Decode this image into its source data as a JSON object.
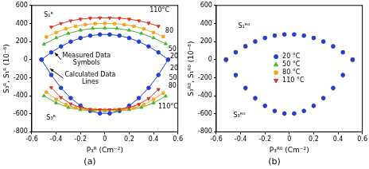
{
  "chart_data": [
    {
      "type": "scatter",
      "title": "(a)",
      "x_label": "P₃ᴿ (Cm⁻²)",
      "y_label": "S₃ᴿ, S₁ᴿ (10⁻⁶)",
      "xlim": [
        -0.6,
        0.6
      ],
      "xticks": [
        -0.6,
        -0.4,
        -0.2,
        0,
        0.2,
        0.4,
        0.6
      ],
      "ylim": [
        -800,
        600
      ],
      "yticks": [
        -800,
        -600,
        -400,
        -200,
        0,
        200,
        400,
        600
      ],
      "grid": false,
      "series": [
        {
          "color": "#e0321e",
          "marker": "triangle-down",
          "line_style": "solid",
          "x": [
            -0.44,
            -0.36,
            -0.28,
            -0.2,
            -0.12,
            -0.04,
            0.04,
            0.12,
            0.2,
            0.28,
            0.36,
            0.44
          ],
          "values": [
            360,
            400,
            430,
            448,
            458,
            462,
            462,
            458,
            448,
            430,
            405,
            370
          ]
        },
        {
          "color": "#f5a623",
          "marker": "square",
          "line_style": "solid",
          "x": [
            -0.48,
            -0.4,
            -0.32,
            -0.24,
            -0.16,
            -0.08,
            0,
            0.08,
            0.16,
            0.24,
            0.32,
            0.4,
            0.48
          ],
          "values": [
            250,
            300,
            340,
            370,
            388,
            398,
            400,
            398,
            388,
            370,
            340,
            300,
            255
          ]
        },
        {
          "color": "#4cb030",
          "marker": "triangle",
          "line_style": "solid",
          "x": [
            -0.5,
            -0.4,
            -0.3,
            -0.2,
            -0.1,
            0,
            0.1,
            0.2,
            0.3,
            0.4,
            0.5
          ],
          "values": [
            170,
            240,
            290,
            325,
            345,
            350,
            345,
            325,
            290,
            240,
            175
          ]
        },
        {
          "color": "#1f3fd6",
          "marker": "circle",
          "line_style": "solid",
          "x": [
            -0.52,
            -0.44,
            -0.36,
            -0.28,
            -0.2,
            -0.12,
            -0.04,
            0.04,
            0.12,
            0.2,
            0.28,
            0.36,
            0.44,
            0.52
          ],
          "values": [
            0,
            80,
            146,
            199,
            239,
            265,
            278,
            278,
            265,
            239,
            199,
            146,
            80,
            0
          ]
        },
        {
          "color": "#e0321e",
          "marker": "triangle-down",
          "line_style": "solid",
          "x": [
            -0.44,
            -0.36,
            -0.28,
            -0.2,
            -0.12,
            -0.04,
            0.04,
            0.12,
            0.2,
            0.28,
            0.36,
            0.44
          ],
          "values": [
            -310,
            -420,
            -490,
            -530,
            -550,
            -555,
            -555,
            -550,
            -530,
            -495,
            -430,
            -330
          ]
        },
        {
          "color": "#f5a623",
          "marker": "square",
          "line_style": "solid",
          "x": [
            -0.48,
            -0.4,
            -0.32,
            -0.24,
            -0.16,
            -0.08,
            0,
            0.08,
            0.16,
            0.24,
            0.32,
            0.4,
            0.48
          ],
          "values": [
            -360,
            -440,
            -500,
            -535,
            -550,
            -555,
            -555,
            -555,
            -550,
            -535,
            -500,
            -440,
            -370
          ]
        },
        {
          "color": "#4cb030",
          "marker": "triangle",
          "line_style": "solid",
          "x": [
            -0.5,
            -0.4,
            -0.3,
            -0.2,
            -0.1,
            0,
            0.1,
            0.2,
            0.3,
            0.4,
            0.5
          ],
          "values": [
            -400,
            -480,
            -530,
            -555,
            -565,
            -568,
            -565,
            -555,
            -530,
            -480,
            -405
          ]
        },
        {
          "color": "#1f3fd6",
          "marker": "circle",
          "line_style": "solid",
          "x": [
            -0.52,
            -0.44,
            -0.36,
            -0.28,
            -0.2,
            -0.12,
            -0.04,
            0.04,
            0.12,
            0.2,
            0.28,
            0.36,
            0.44,
            0.52
          ],
          "values": [
            0,
            -170,
            -313,
            -426,
            -511,
            -568,
            -596,
            -596,
            -568,
            -511,
            -426,
            -313,
            -170,
            0
          ]
        }
      ],
      "annotations": [
        "S₁ᴿ",
        "110°C",
        "80",
        "50",
        "20",
        "Measured Data Symbols",
        "Calculated Data Lines",
        "S₃ᴿ",
        "20",
        "50",
        "80",
        "110°C"
      ]
    },
    {
      "type": "scatter",
      "title": "(b)",
      "x_label": "P₃ᴿ⁰ (Cm⁻²)",
      "y_label": "S₃ᴿ⁰, S₁ᴿ⁰ (10⁻⁶)",
      "xlim": [
        -0.6,
        0.6
      ],
      "xticks": [
        -0.6,
        -0.4,
        -0.2,
        0,
        0.2,
        0.4,
        0.6
      ],
      "ylim": [
        -800,
        600
      ],
      "yticks": [
        -800,
        -600,
        -400,
        -200,
        0,
        200,
        400,
        600
      ],
      "grid": false,
      "legend": "center",
      "series": [
        {
          "name": "20 °C",
          "color": "#1f3fd6",
          "marker": "circle",
          "line_style": "none",
          "x": [
            -0.52,
            -0.44,
            -0.36,
            -0.28,
            -0.2,
            -0.12,
            -0.04,
            0.04,
            0.12,
            0.2,
            0.28,
            0.36,
            0.44,
            0.52
          ],
          "values": [
            0,
            80,
            146,
            199,
            239,
            265,
            278,
            278,
            265,
            239,
            199,
            146,
            80,
            0
          ]
        },
        {
          "name": "50 °C",
          "color": "#4cb030",
          "marker": "triangle",
          "line_style": "none",
          "x": [
            -0.52,
            -0.44,
            -0.36,
            -0.28,
            -0.2,
            -0.12,
            -0.04,
            0.04,
            0.12,
            0.2,
            0.28,
            0.36,
            0.44,
            0.52
          ],
          "values": [
            5,
            84,
            150,
            202,
            241,
            268,
            280,
            279,
            266,
            241,
            201,
            148,
            83,
            4
          ]
        },
        {
          "name": "80 °C",
          "color": "#f5a623",
          "marker": "square",
          "line_style": "none",
          "x": [
            -0.52,
            -0.44,
            -0.36,
            -0.28,
            -0.2,
            -0.12,
            -0.04,
            0.04,
            0.12,
            0.2,
            0.28,
            0.36,
            0.44,
            0.52
          ],
          "values": [
            8,
            86,
            152,
            205,
            244,
            270,
            282,
            281,
            268,
            243,
            203,
            150,
            86,
            6
          ]
        },
        {
          "name": "110 °C",
          "color": "#e0321e",
          "marker": "triangle-down",
          "line_style": "none",
          "x": [
            -0.52,
            -0.44,
            -0.36,
            -0.28,
            -0.2,
            -0.12,
            -0.04,
            0.04,
            0.12,
            0.2,
            0.28,
            0.36,
            0.44,
            0.52
          ],
          "values": [
            10,
            88,
            155,
            208,
            246,
            272,
            283,
            283,
            270,
            246,
            206,
            153,
            88,
            8
          ]
        },
        {
          "color": "#1f3fd6",
          "marker": "circle",
          "line_style": "none",
          "x": [
            -0.52,
            -0.44,
            -0.36,
            -0.28,
            -0.2,
            -0.12,
            -0.04,
            0.04,
            0.12,
            0.2,
            0.28,
            0.36,
            0.44,
            0.52
          ],
          "values": [
            0,
            -170,
            -313,
            -426,
            -511,
            -568,
            -596,
            -596,
            -568,
            -511,
            -426,
            -313,
            -170,
            0
          ]
        },
        {
          "color": "#4cb030",
          "marker": "triangle",
          "line_style": "none",
          "x": [
            -0.52,
            -0.44,
            -0.36,
            -0.28,
            -0.2,
            -0.12,
            -0.04,
            0.04,
            0.12,
            0.2,
            0.28,
            0.36,
            0.44,
            0.52
          ],
          "values": [
            -5,
            -175,
            -318,
            -430,
            -514,
            -570,
            -598,
            -597,
            -570,
            -513,
            -428,
            -316,
            -173,
            -4
          ]
        },
        {
          "color": "#f5a623",
          "marker": "square",
          "line_style": "none",
          "x": [
            -0.52,
            -0.44,
            -0.36,
            -0.28,
            -0.2,
            -0.12,
            -0.04,
            0.04,
            0.12,
            0.2,
            0.28,
            0.36,
            0.44,
            0.52
          ],
          "values": [
            -8,
            -178,
            -320,
            -432,
            -516,
            -572,
            -600,
            -599,
            -571,
            -515,
            -430,
            -318,
            -176,
            -7
          ]
        },
        {
          "color": "#e0321e",
          "marker": "triangle-down",
          "line_style": "none",
          "x": [
            -0.52,
            -0.44,
            -0.36,
            -0.28,
            -0.2,
            -0.12,
            -0.04,
            0.04,
            0.12,
            0.2,
            0.28,
            0.36,
            0.44,
            0.52
          ],
          "values": [
            -12,
            -182,
            -324,
            -436,
            -518,
            -574,
            -602,
            -601,
            -573,
            -517,
            -433,
            -322,
            -180,
            -10
          ]
        }
      ],
      "annotations": [
        "S₁ᴿ⁰",
        "S₃ᴿ⁰"
      ]
    }
  ]
}
